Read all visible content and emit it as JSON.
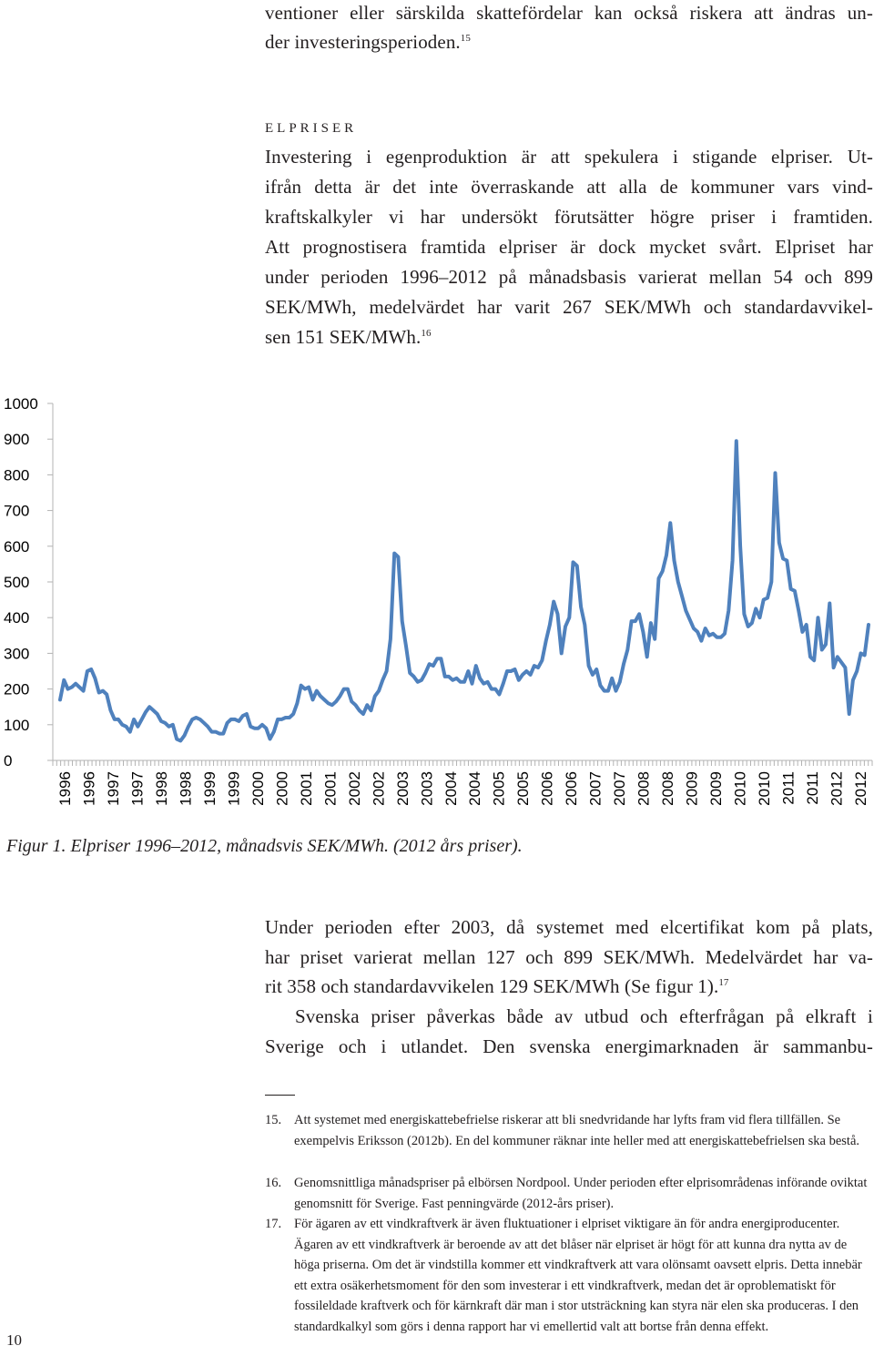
{
  "top_text": {
    "line1": "ventioner eller särskilda skattefördelar kan också riskera att ändras un-",
    "line2": "der investeringsperioden.",
    "ref": "15"
  },
  "section": {
    "heading": "elpriser",
    "lines": [
      "Investering i egenproduktion är att spekulera i stigande elpriser. Ut-",
      "ifrån detta är det inte överraskande att alla de kommuner vars vind-",
      "kraftskalkyler vi har undersökt förutsätter högre priser i framtiden.",
      "Att prognostisera framtida elpriser är dock mycket svårt. Elpriset har",
      "under perioden 1996–2012 på månadsbasis varierat mellan 54 och 899",
      "SEK/MWh, medelvärdet har varit 267 SEK/MWh och standardavvikel-"
    ],
    "last_line": "sen 151 SEK/MWh.",
    "ref": "16"
  },
  "chart_data": {
    "type": "line",
    "ylim": [
      0,
      1000
    ],
    "yticks": [
      "1000",
      "900",
      "800",
      "700",
      "600",
      "500",
      "400",
      "300",
      "200",
      "100",
      "0"
    ],
    "xticks": [
      "1996",
      "1996",
      "1997",
      "1997",
      "1998",
      "1998",
      "1999",
      "1999",
      "2000",
      "2000",
      "2001",
      "2001",
      "2002",
      "2002",
      "2003",
      "2003",
      "2004",
      "2004",
      "2005",
      "2005",
      "2006",
      "2006",
      "2007",
      "2007",
      "2008",
      "2008",
      "2009",
      "2009",
      "2010",
      "2010",
      "2011",
      "2011",
      "2012",
      "2012"
    ],
    "series": [
      {
        "values": [
          170,
          225,
          200,
          205,
          215,
          205,
          195,
          250,
          255,
          230,
          190,
          195,
          185,
          140,
          115,
          115,
          100,
          95,
          80,
          115,
          95,
          115,
          135,
          150,
          140,
          130,
          110,
          105,
          95,
          100,
          60,
          55,
          70,
          95,
          115,
          120,
          115,
          105,
          95,
          80,
          80,
          75,
          75,
          105,
          115,
          115,
          110,
          125,
          130,
          95,
          90,
          90,
          100,
          90,
          60,
          80,
          115,
          115,
          120,
          120,
          130,
          160,
          210,
          200,
          205,
          170,
          195,
          180,
          170,
          160,
          155,
          165,
          180,
          200,
          200,
          165,
          155,
          140,
          130,
          155,
          140,
          180,
          195,
          225,
          250,
          340,
          580,
          570,
          390,
          320,
          245,
          235,
          220,
          225,
          245,
          270,
          265,
          285,
          285,
          235,
          235,
          225,
          230,
          220,
          220,
          250,
          215,
          265,
          230,
          215,
          220,
          200,
          200,
          185,
          215,
          250,
          250,
          255,
          225,
          240,
          250,
          240,
          265,
          260,
          280,
          335,
          380,
          445,
          410,
          300,
          375,
          400,
          555,
          545,
          430,
          380,
          265,
          240,
          255,
          210,
          195,
          195,
          230,
          195,
          220,
          270,
          310,
          390,
          390,
          410,
          360,
          290,
          385,
          340,
          510,
          530,
          575,
          665,
          560,
          500,
          460,
          420,
          395,
          370,
          360,
          335,
          370,
          350,
          355,
          345,
          345,
          355,
          420,
          560,
          895,
          600,
          410,
          375,
          385,
          425,
          400,
          450,
          455,
          500,
          805,
          610,
          565,
          560,
          480,
          475,
          420,
          360,
          380,
          290,
          280,
          400,
          310,
          325,
          440,
          260,
          290,
          275,
          260,
          130,
          225,
          250,
          300,
          295,
          380
        ]
      }
    ]
  },
  "caption": "Figur 1. Elpriser 1996–2012, månadsvis SEK/MWh. (2012 års priser).",
  "body2": {
    "lines": [
      "Under perioden efter 2003, då systemet med elcertifikat kom på plats,",
      "har priset varierat mellan 127 och 899 SEK/MWh. Medelvärdet har va-"
    ],
    "line3": "rit 358 och standardavvikelen 129 SEK/MWh (Se figur 1).",
    "ref": "17",
    "line4": "Svenska priser påverkas både av utbud och efterfrågan på elkraft i",
    "line5": "Sverige och i utlandet. Den svenska energimarknaden är sammanbu-"
  },
  "footnotes": [
    {
      "num": "15.",
      "text": "Att systemet med energiskattebefrielse riskerar att bli snedvridande har lyfts fram vid flera tillfällen. Se exempelvis Eriksson (2012b). En del kommuner räknar inte heller med att energiskattebefrielsen ska bestå."
    },
    {
      "num": "16.",
      "text": "Genomsnittliga månadspriser på elbörsen Nordpool. Under perioden efter elprisområdenas införande oviktat genomsnitt för Sverige. Fast penningvärde (2012-års priser)."
    },
    {
      "num": "17.",
      "text": "För ägaren av ett vindkraftverk är även fluktuationer i elpriset viktigare än för andra energiproducenter. Ägaren av ett vindkraftverk är beroende av att det blåser när elpriset är högt för att kunna dra nytta av de höga priserna. Om det är vindstilla kommer ett vindkraftverk att vara olönsamt oavsett elpris. Detta innebär ett extra osäkerhetsmoment för den som investerar i ett vindkraftverk, medan det är oproblematiskt för fossileldade kraftverk och för kärnkraft där man i stor utsträckning kan styra när elen ska produceras. I den standardkalkyl som görs i denna rapport har vi emellertid valt att bortse från denna effekt."
    }
  ],
  "page_number": "10",
  "colors": {
    "line": "#4f81bd",
    "axis": "#b3b3b3",
    "text": "#231f20"
  }
}
